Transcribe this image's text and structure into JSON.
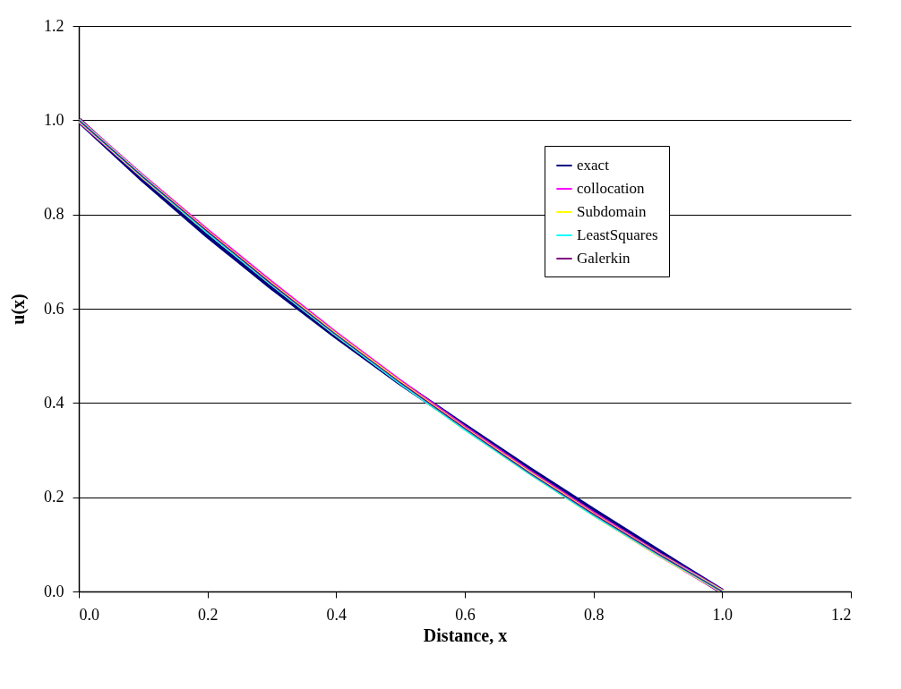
{
  "chart_data": {
    "type": "line",
    "xlabel": "Distance, x",
    "ylabel": "u(x)",
    "x": [
      0,
      0.1,
      0.2,
      0.3,
      0.4,
      0.5,
      0.6,
      0.7,
      0.8,
      0.9,
      1.0
    ],
    "series": [
      {
        "name": "exact",
        "color": "#000080",
        "values": [
          1,
          0.874,
          0.756,
          0.646,
          0.542,
          0.443,
          0.35,
          0.259,
          0.171,
          0.085,
          0
        ]
      },
      {
        "name": "collocation",
        "color": "#ff00ff",
        "values": [
          1,
          0.88,
          0.765,
          0.654,
          0.547,
          0.445,
          0.347,
          0.254,
          0.165,
          0.08,
          0
        ]
      },
      {
        "name": "Subdomain",
        "color": "#ffff00",
        "values": [
          1,
          0.879,
          0.763,
          0.652,
          0.545,
          0.443,
          0.345,
          0.252,
          0.163,
          0.079,
          0
        ]
      },
      {
        "name": "LeastSquares",
        "color": "#00ffff",
        "values": [
          1,
          0.879,
          0.762,
          0.651,
          0.544,
          0.441,
          0.344,
          0.251,
          0.162,
          0.079,
          0
        ]
      },
      {
        "name": "Galerkin",
        "color": "#800080",
        "values": [
          1,
          0.879,
          0.764,
          0.652,
          0.545,
          0.443,
          0.346,
          0.252,
          0.164,
          0.08,
          0
        ]
      }
    ],
    "xlim": [
      0,
      1.2
    ],
    "xticks": [
      {
        "value": 0,
        "label": "0.0"
      },
      0.2,
      0.4,
      0.6,
      0.8,
      {
        "value": 1,
        "label": "1.0"
      },
      1.2
    ],
    "ylim": [
      0,
      1.2
    ],
    "yticks": [
      {
        "value": 0,
        "label": "0.0"
      },
      0.2,
      0.4,
      0.6,
      0.8,
      {
        "value": 1,
        "label": "1.0"
      },
      1.2
    ],
    "grid": "y",
    "legend": "top right",
    "marker": "none",
    "line_style": "solid"
  }
}
